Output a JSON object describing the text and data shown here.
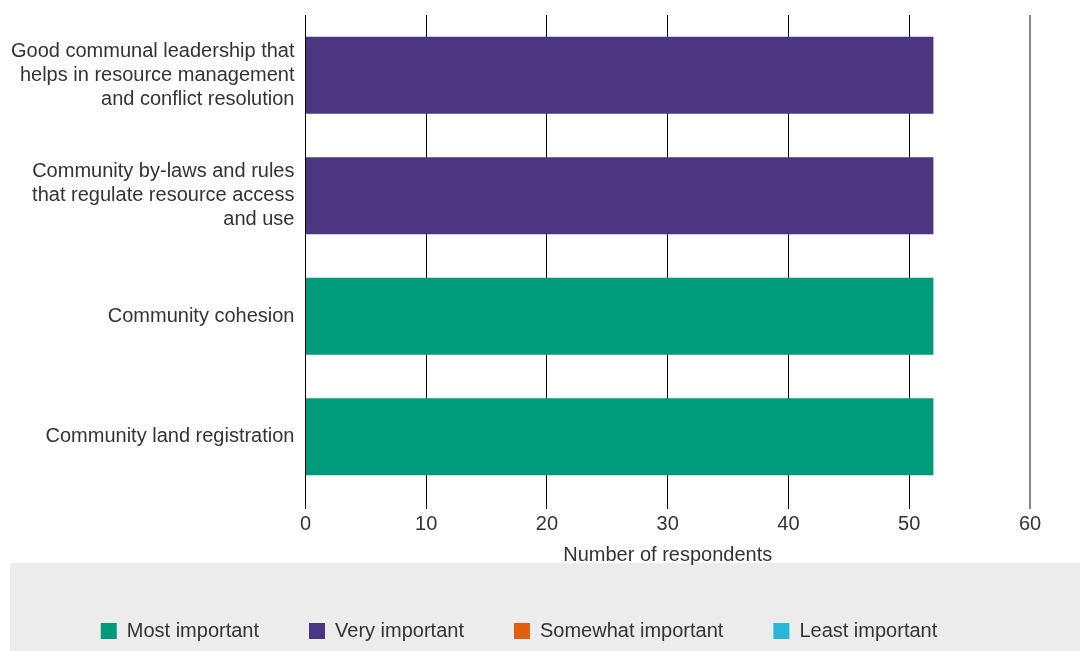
{
  "chart_data": {
    "type": "bar",
    "orientation": "horizontal",
    "stacked": true,
    "xlabel": "Number of respondents",
    "categories": [
      "Good communal leadership that helps in resource management and conflict resolution",
      "Community by-laws and rules that regulate resource access and use",
      "Community cohesion",
      "Community land registration"
    ],
    "series": [
      {
        "name": "Most important",
        "color": "#009b7a",
        "values": [
          0,
          0,
          52,
          52
        ]
      },
      {
        "name": "Very important",
        "color": "#4b3682",
        "values": [
          52,
          52,
          0,
          0
        ]
      },
      {
        "name": "Somewhat important",
        "color": "#e0600f",
        "values": [
          0,
          0,
          0,
          0
        ]
      },
      {
        "name": "Least important",
        "color": "#29b6d9",
        "values": [
          0,
          0,
          0,
          0
        ]
      }
    ],
    "xlim": [
      0,
      60
    ],
    "xticks": [
      0,
      10,
      20,
      30,
      40,
      50,
      60
    ],
    "grid": "x",
    "legend": "bottom"
  }
}
